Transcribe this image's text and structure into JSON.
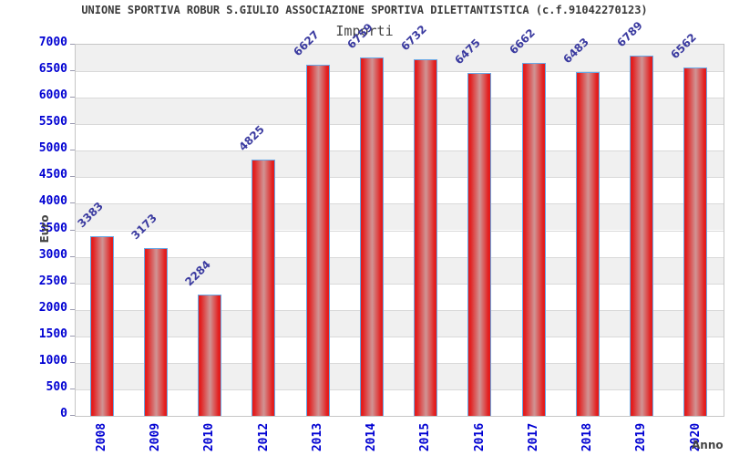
{
  "header": {
    "title": "UNIONE SPORTIVA ROBUR S.GIULIO ASSOCIAZIONE SPORTIVA DILETTANTISTICA (c.f.91042270123)"
  },
  "chart_data": {
    "type": "bar",
    "title": "Importi",
    "categories": [
      "2008",
      "2009",
      "2010",
      "2012",
      "2013",
      "2014",
      "2015",
      "2016",
      "2017",
      "2018",
      "2019",
      "2020"
    ],
    "values": [
      3383,
      3173,
      2284,
      4825,
      6627,
      6759,
      6732,
      6475,
      6662,
      6483,
      6789,
      6562
    ],
    "xlabel": "Anno",
    "ylabel": "Euro",
    "ylim": [
      0,
      7000
    ],
    "ytick_step": 500,
    "grid": true,
    "legend": "none",
    "band_pattern": "alternating horizontal shading every 500 units, shaded band at top",
    "colors": {
      "bar_edge": "#e31d1d",
      "bar_center": "#d09494",
      "bar_border": "#68a8e6",
      "axis_tick_text": "#0000d2",
      "value_label": "#3b3ba0",
      "band_shaded": "#f0f0f0",
      "band_plain": "#ffffff",
      "gridline": "#d9d9d9",
      "plot_border": "#c6c6c6",
      "title_text": "#3a3a3a",
      "axis_label_text": "#444444"
    }
  }
}
